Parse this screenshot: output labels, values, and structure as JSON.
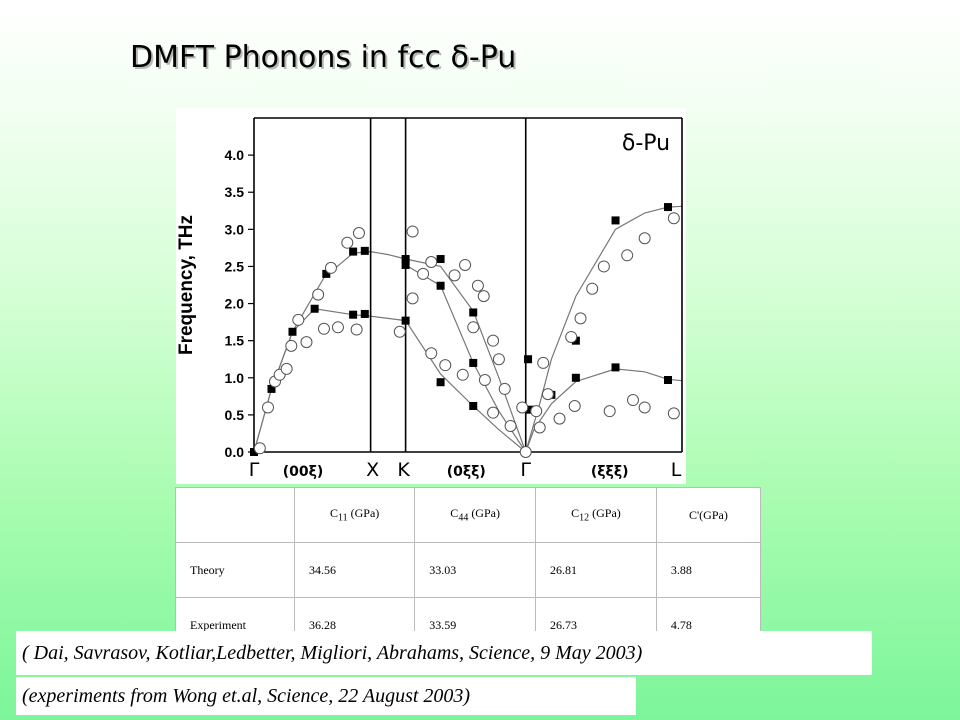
{
  "title": "DMFT  Phonons in fcc δ-Pu",
  "chart_data": {
    "type": "scatter",
    "material_label": "δ-Pu",
    "ylabel": "Frequency, THz",
    "ylim": [
      0,
      4.5
    ],
    "yticks": [
      {
        "v": 0,
        "label": "0.0"
      },
      {
        "v": 0.5,
        "label": "0.5"
      },
      {
        "v": 1.0,
        "label": "1.0"
      },
      {
        "v": 1.5,
        "label": "1.5"
      },
      {
        "v": 2.0,
        "label": "2.0"
      },
      {
        "v": 2.5,
        "label": "2.5"
      },
      {
        "v": 3.0,
        "label": "3.0"
      },
      {
        "v": 3.5,
        "label": "3.5"
      },
      {
        "v": 4.0,
        "label": "4.0"
      }
    ],
    "xlim": [
      0,
      3.67
    ],
    "symmetry_points": [
      {
        "x": 0,
        "label": "Γ"
      },
      {
        "x": 1.0,
        "label": "X"
      },
      {
        "x": 1.3,
        "label": "K"
      },
      {
        "x": 2.33,
        "label": "Γ"
      },
      {
        "x": 3.67,
        "label": "L"
      }
    ],
    "direction_labels": [
      {
        "x": 0.42,
        "label": "(00ξ)"
      },
      {
        "x": 1.82,
        "label": "(0ξξ)"
      },
      {
        "x": 3.05,
        "label": "(ξξξ)"
      }
    ],
    "panel_borders": [
      0,
      1.0,
      1.3,
      2.33,
      3.67
    ],
    "series": [
      {
        "name": "Theory",
        "marker": "square",
        "points": [
          [
            0,
            0
          ],
          [
            0.15,
            0.85
          ],
          [
            0.33,
            1.62
          ],
          [
            0.52,
            1.93
          ],
          [
            0.62,
            2.4
          ],
          [
            0.85,
            2.7
          ],
          [
            0.85,
            1.85
          ],
          [
            0.95,
            2.71
          ],
          [
            0.95,
            1.86
          ],
          [
            1.3,
            2.6
          ],
          [
            1.3,
            2.52
          ],
          [
            1.3,
            1.77
          ],
          [
            1.6,
            2.6
          ],
          [
            1.6,
            2.24
          ],
          [
            1.6,
            0.94
          ],
          [
            1.88,
            1.88
          ],
          [
            1.88,
            1.2
          ],
          [
            1.88,
            0.62
          ],
          [
            2.35,
            1.25
          ],
          [
            2.37,
            0.57
          ],
          [
            2.55,
            0.77
          ],
          [
            2.76,
            1.5
          ],
          [
            2.76,
            1.0
          ],
          [
            3.1,
            3.12
          ],
          [
            3.1,
            1.14
          ],
          [
            3.55,
            3.3
          ],
          [
            3.55,
            0.97
          ]
        ]
      },
      {
        "name": "Experiment",
        "marker": "circle",
        "points": [
          [
            0.05,
            0.05
          ],
          [
            0.12,
            0.6
          ],
          [
            0.18,
            0.95
          ],
          [
            0.22,
            1.04
          ],
          [
            0.28,
            1.12
          ],
          [
            0.32,
            1.43
          ],
          [
            0.38,
            1.78
          ],
          [
            0.45,
            1.48
          ],
          [
            0.55,
            2.12
          ],
          [
            0.6,
            1.66
          ],
          [
            0.66,
            2.48
          ],
          [
            0.8,
            2.82
          ],
          [
            0.9,
            2.95
          ],
          [
            0.72,
            1.68
          ],
          [
            0.88,
            1.65
          ],
          [
            1.25,
            1.62
          ],
          [
            1.36,
            2.07
          ],
          [
            1.36,
            2.97
          ],
          [
            1.45,
            2.4
          ],
          [
            1.52,
            1.33
          ],
          [
            1.52,
            2.56
          ],
          [
            1.64,
            1.17
          ],
          [
            1.72,
            2.38
          ],
          [
            1.79,
            1.04
          ],
          [
            1.81,
            2.52
          ],
          [
            1.88,
            1.68
          ],
          [
            1.92,
            2.24
          ],
          [
            1.97,
            2.1
          ],
          [
            1.98,
            0.97
          ],
          [
            2.05,
            0.53
          ],
          [
            2.05,
            1.5
          ],
          [
            2.1,
            1.25
          ],
          [
            2.15,
            0.85
          ],
          [
            2.2,
            0.35
          ],
          [
            2.3,
            0.6
          ],
          [
            2.33,
            0.0
          ],
          [
            2.42,
            0.55
          ],
          [
            2.45,
            0.33
          ],
          [
            2.52,
            0.78
          ],
          [
            2.48,
            1.2
          ],
          [
            2.62,
            0.45
          ],
          [
            2.75,
            0.62
          ],
          [
            2.72,
            1.55
          ],
          [
            2.8,
            1.8
          ],
          [
            2.9,
            2.2
          ],
          [
            3.0,
            2.5
          ],
          [
            3.05,
            0.55
          ],
          [
            3.2,
            2.65
          ],
          [
            3.25,
            0.7
          ],
          [
            3.35,
            2.88
          ],
          [
            3.35,
            0.6
          ],
          [
            3.6,
            3.15
          ],
          [
            3.6,
            0.52
          ]
        ]
      }
    ]
  },
  "table": {
    "headers": [
      "",
      "C11 (GPa)",
      "C44 (GPa)",
      "C12 (GPa)",
      "C'(GPa)"
    ],
    "rows": [
      {
        "label": "Theory",
        "c11": "34.56",
        "c44": "33.03",
        "c12": "26.81",
        "cp": "3.88"
      },
      {
        "label": "Experiment",
        "c11": "36.28",
        "c44": "33.59",
        "c12": "26.73",
        "cp": "4.78"
      }
    ],
    "h_c": "C",
    "h_11": "11",
    "h_44": "44",
    "h_12": "12",
    "h_unit": " (GPa)",
    "h_cp": "C'(GPa)"
  },
  "citation1": "( Dai, Savrasov, Kotliar,Ledbetter, Migliori, Abrahams, Science, 9 May 2003)",
  "citation2": "(experiments from Wong et.al, Science, 22 August 2003)"
}
